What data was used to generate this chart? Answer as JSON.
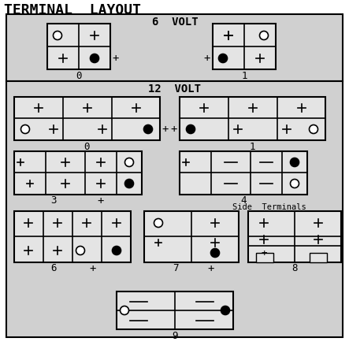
{
  "title": "TERMINAL  LAYOUT",
  "bg_outer": "#ffffff",
  "bg_section": "#d0d0d0",
  "bg_bat": "#e8e8e8",
  "label_6v": "6  VOLT",
  "label_12v": "12  VOLT",
  "label_side": "Side  Terminals",
  "font": "monospace",
  "lw_section": 1.5,
  "lw_bat": 1.5,
  "lw_div": 1.2,
  "cr": 5.5,
  "plus_s": 5,
  "minus_s": 7
}
